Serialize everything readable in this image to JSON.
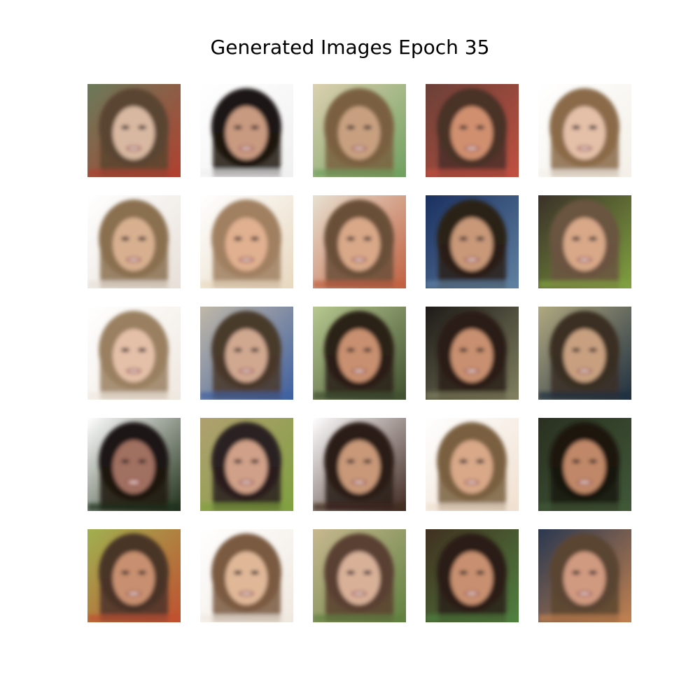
{
  "title": "Generated Images Epoch 35",
  "grid": {
    "rows": 5,
    "cols": 5,
    "tiles": [
      {
        "bg": "#6a7a5a",
        "bg2": "#b04030",
        "hair": "#5a4530",
        "skin": "#d8b8a0"
      },
      {
        "bg": "#ffffff",
        "bg2": "#f0f0f0",
        "hair": "#1e1612",
        "skin": "#c89a80"
      },
      {
        "bg": "#dcd0b0",
        "bg2": "#70a060",
        "hair": "#7a6040",
        "skin": "#c8a080"
      },
      {
        "bg": "#6a4038",
        "bg2": "#c05040",
        "hair": "#4a3028",
        "skin": "#d09070"
      },
      {
        "bg": "#ffffff",
        "bg2": "#f4f0e8",
        "hair": "#8a6a48",
        "skin": "#e4c0a8"
      },
      {
        "bg": "#ffffff",
        "bg2": "#e8e0d8",
        "hair": "#8a7050",
        "skin": "#d8b090"
      },
      {
        "bg": "#ffffff",
        "bg2": "#e8d8c0",
        "hair": "#a08060",
        "skin": "#e0b090"
      },
      {
        "bg": "#e8e0d0",
        "bg2": "#c06040",
        "hair": "#6a5038",
        "skin": "#d8a888"
      },
      {
        "bg": "#1a3060",
        "bg2": "#6080a0",
        "hair": "#2a2018",
        "skin": "#c89878"
      },
      {
        "bg": "#3a3028",
        "bg2": "#80a040",
        "hair": "#6a5440",
        "skin": "#d8a888"
      },
      {
        "bg": "#ffffff",
        "bg2": "#f0e8e0",
        "hair": "#9a8060",
        "skin": "#e4c0a8"
      },
      {
        "bg": "#c0b8a8",
        "bg2": "#4060a0",
        "hair": "#4a3a2c",
        "skin": "#d0a890"
      },
      {
        "bg": "#b8c890",
        "bg2": "#405030",
        "hair": "#2a2018",
        "skin": "#c89070"
      },
      {
        "bg": "#1e1a18",
        "bg2": "#808060",
        "hair": "#2a1e16",
        "skin": "#c89070"
      },
      {
        "bg": "#b0a880",
        "bg2": "#203040",
        "hair": "#3a2e24",
        "skin": "#c8a080"
      },
      {
        "bg": "#ffffff",
        "bg2": "#203018",
        "hair": "#1e1612",
        "skin": "#a07060"
      },
      {
        "bg": "#b0a070",
        "bg2": "#80a040",
        "hair": "#2a2020",
        "skin": "#d0a088"
      },
      {
        "bg": "#ffffff",
        "bg2": "#402820",
        "hair": "#2a1e18",
        "skin": "#c89878"
      },
      {
        "bg": "#ffffff",
        "bg2": "#f0e0d0",
        "hair": "#7a6040",
        "skin": "#d8a888"
      },
      {
        "bg": "#2a3020",
        "bg2": "#405838",
        "hair": "#1a1410",
        "skin": "#c08868"
      },
      {
        "bg": "#a0b050",
        "bg2": "#c05030",
        "hair": "#4a3428",
        "skin": "#c89070"
      },
      {
        "bg": "#ffffff",
        "bg2": "#f0e8e0",
        "hair": "#7a5a40",
        "skin": "#e0b898"
      },
      {
        "bg": "#c8b890",
        "bg2": "#608040",
        "hair": "#5a4030",
        "skin": "#d8b098"
      },
      {
        "bg": "#403020",
        "bg2": "#508040",
        "hair": "#2a1e14",
        "skin": "#c89070"
      },
      {
        "bg": "#2a3850",
        "bg2": "#c08050",
        "hair": "#5a4430",
        "skin": "#d09a80"
      }
    ]
  }
}
